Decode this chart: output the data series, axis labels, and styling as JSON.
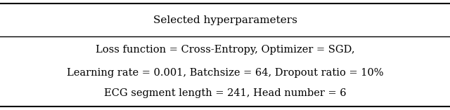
{
  "header": "Selected hyperparameters",
  "line1": "Loss function = Cross-Entropy, Optimizer = SGD,",
  "line2": "Learning rate = 0.001, Batchsize = 64, Dropout ratio = 10%",
  "line3": "ECG segment length = 241, Head number = 6",
  "bg_color": "#ffffff",
  "text_color": "#000000",
  "header_fontsize": 11,
  "body_fontsize": 10.5
}
